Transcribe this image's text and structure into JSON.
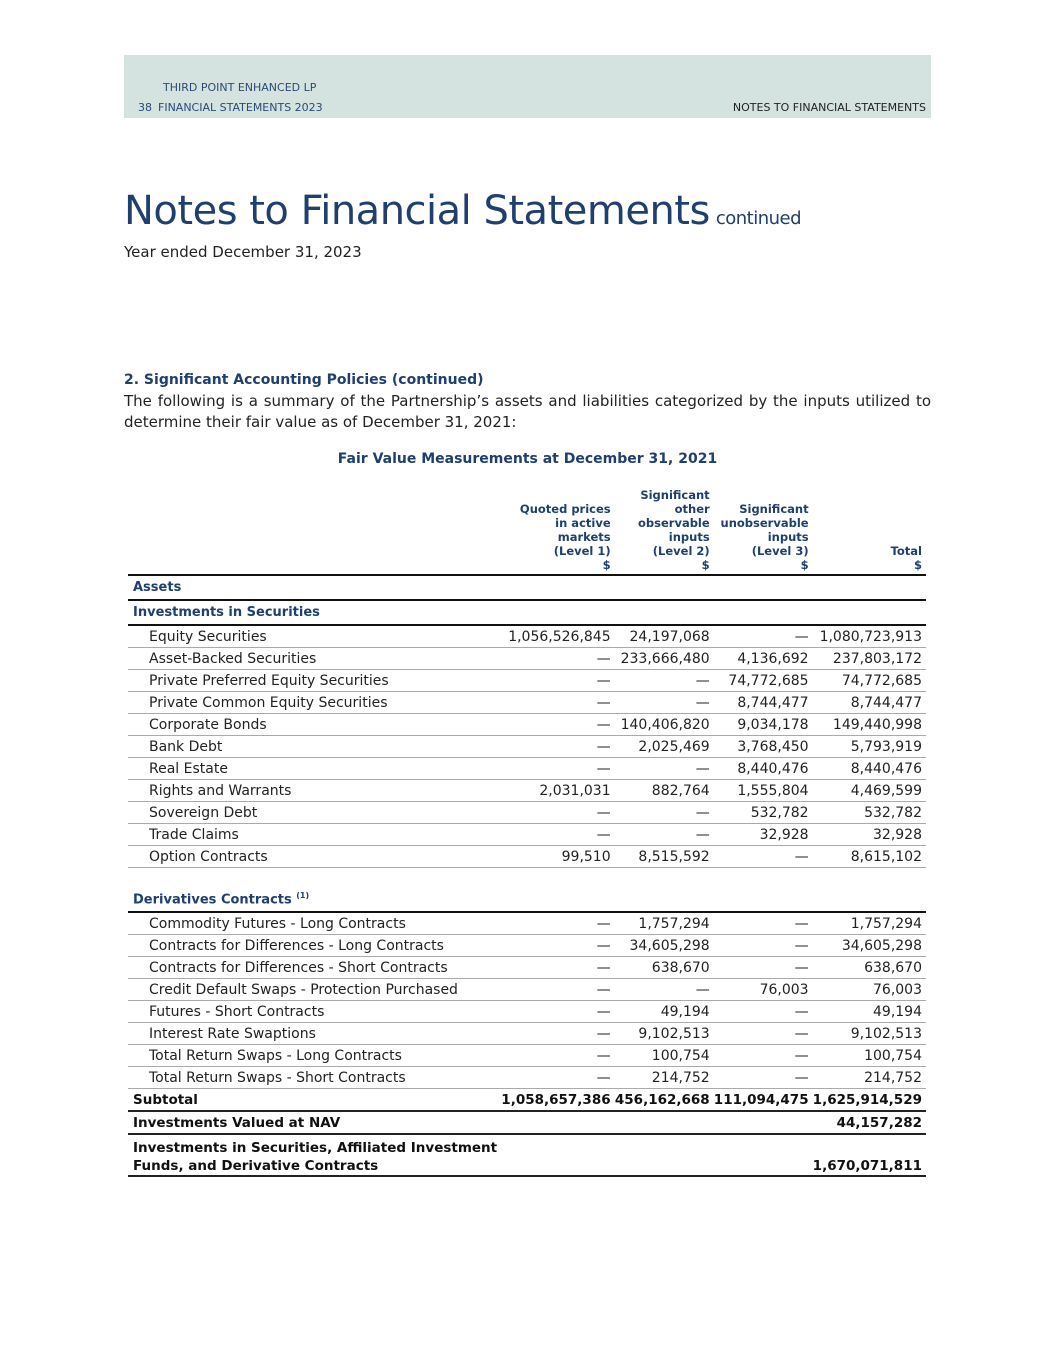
{
  "header": {
    "company": "THIRD POINT ENHANCED LP",
    "page_number": "38",
    "report": "FINANCIAL STATEMENTS 2023",
    "section": "NOTES TO FINANCIAL STATEMENTS",
    "band_color": "#d4e3df"
  },
  "title": {
    "main": "Notes to Financial Statements",
    "continued": "continued",
    "subtitle": "Year ended December 31, 2023",
    "color": "#1f3f6e"
  },
  "section": {
    "heading": "2. Significant Accounting Policies (continued)",
    "intro": "The following is a summary of the Partnership’s  assets and liabilities categorized by the inputs utilized to determine their fair value as of December 31, 2021:"
  },
  "table": {
    "title": "Fair Value Measurements at December 31, 2021",
    "columns": [
      {
        "lines": [
          "Quoted prices",
          "in active",
          "markets",
          "(Level 1)",
          "$"
        ]
      },
      {
        "lines": [
          "Significant",
          "other",
          "observable",
          "inputs",
          "(Level 2)",
          "$"
        ]
      },
      {
        "lines": [
          "Significant",
          "unobservable",
          "inputs",
          "(Level 3)",
          "$"
        ]
      },
      {
        "lines": [
          "Total",
          "$"
        ]
      }
    ],
    "rows": [
      {
        "type": "group",
        "label": "Assets"
      },
      {
        "type": "group",
        "label": "Investments in Securities"
      },
      {
        "label": "Equity Securities",
        "values": [
          "1,056,526,845",
          "24,197,068",
          "—",
          "1,080,723,913"
        ]
      },
      {
        "label": "Asset-Backed Securities",
        "values": [
          "—",
          "233,666,480",
          "4,136,692",
          "237,803,172"
        ]
      },
      {
        "label": "Private Preferred Equity Securities",
        "values": [
          "—",
          "—",
          "74,772,685",
          "74,772,685"
        ]
      },
      {
        "label": "Private Common Equity Securities",
        "values": [
          "—",
          "—",
          "8,744,477",
          "8,744,477"
        ]
      },
      {
        "label": "Corporate Bonds",
        "values": [
          "—",
          "140,406,820",
          "9,034,178",
          "149,440,998"
        ]
      },
      {
        "label": "Bank Debt",
        "values": [
          "—",
          "2,025,469",
          "3,768,450",
          "5,793,919"
        ]
      },
      {
        "label": "Real Estate",
        "values": [
          "—",
          "—",
          "8,440,476",
          "8,440,476"
        ]
      },
      {
        "label": "Rights and Warrants",
        "values": [
          "2,031,031",
          "882,764",
          "1,555,804",
          "4,469,599"
        ]
      },
      {
        "label": "Sovereign Debt",
        "values": [
          "—",
          "—",
          "532,782",
          "532,782"
        ]
      },
      {
        "label": "Trade Claims",
        "values": [
          "—",
          "—",
          "32,928",
          "32,928"
        ]
      },
      {
        "label": "Option Contracts",
        "values": [
          "99,510",
          "8,515,592",
          "—",
          "8,615,102"
        ]
      },
      {
        "type": "group",
        "label": "Derivatives Contracts",
        "footnote": "(1)",
        "gap": true
      },
      {
        "label": "Commodity Futures - Long Contracts",
        "values": [
          "—",
          "1,757,294",
          "—",
          "1,757,294"
        ]
      },
      {
        "label": "Contracts for Differences - Long Contracts",
        "values": [
          "—",
          "34,605,298",
          "—",
          "34,605,298"
        ]
      },
      {
        "label": "Contracts for Differences - Short Contracts",
        "values": [
          "—",
          "638,670",
          "—",
          "638,670"
        ]
      },
      {
        "label": "Credit Default Swaps - Protection Purchased",
        "values": [
          "—",
          "—",
          "76,003",
          "76,003"
        ]
      },
      {
        "label": "Futures - Short Contracts",
        "values": [
          "—",
          "49,194",
          "—",
          "49,194"
        ]
      },
      {
        "label": "Interest Rate Swaptions",
        "values": [
          "—",
          "9,102,513",
          "—",
          "9,102,513"
        ]
      },
      {
        "label": "Total Return Swaps - Long Contracts",
        "values": [
          "—",
          "100,754",
          "—",
          "100,754"
        ]
      },
      {
        "label": "Total Return Swaps - Short Contracts",
        "values": [
          "—",
          "214,752",
          "—",
          "214,752"
        ]
      },
      {
        "type": "bold",
        "label": "Subtotal",
        "values": [
          "1,058,657,386",
          "456,162,668",
          "111,094,475",
          "1,625,914,529"
        ]
      },
      {
        "type": "bold",
        "label": "Investments Valued at NAV",
        "values": [
          "",
          "",
          "",
          "44,157,282"
        ]
      },
      {
        "type": "bold",
        "tall": true,
        "label_lines": [
          "Investments in Securities, Affiliated Investment",
          "Funds, and Derivative Contracts"
        ],
        "values": [
          "",
          "",
          "",
          "1,670,071,811"
        ]
      }
    ]
  }
}
